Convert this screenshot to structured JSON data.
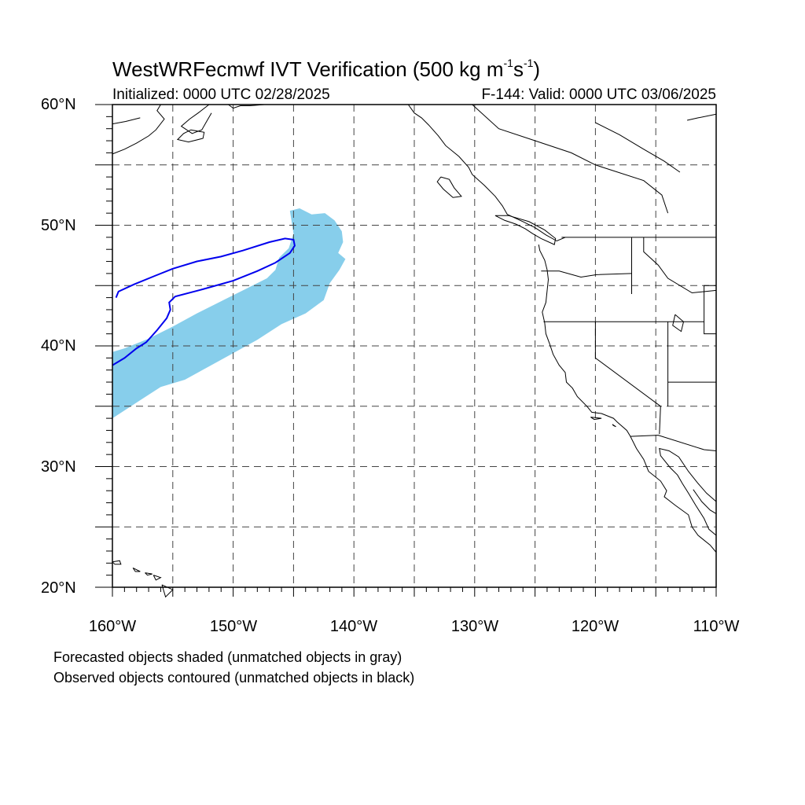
{
  "title_prefix": "WestWRFecmwf IVT Verification (500 kg m",
  "title_exp1": "-1",
  "title_mid": "s",
  "title_exp2": "-1",
  "title_suffix": ")",
  "initialized": "Initialized: 0000 UTC 02/28/2025",
  "valid": "F-144: Valid: 0000 UTC 03/06/2025",
  "lat_labels": [
    "60°N",
    "50°N",
    "40°N",
    "30°N",
    "20°N"
  ],
  "lon_labels": [
    "160°W",
    "150°W",
    "140°W",
    "130°W",
    "120°W",
    "110°W"
  ],
  "legend_note_1": "Forecasted objects shaded (unmatched objects in gray)",
  "legend_note_2": "Observed objects contoured (unmatched objects in black)",
  "map_extent": {
    "lon_min": -160,
    "lon_max": -110,
    "lat_min": 20,
    "lat_max": 60
  },
  "colors": {
    "forecast_object_fill": "#87ceeb",
    "observed_object_contour": "#0000ee",
    "coastline": "#000000",
    "grid": "#000000"
  },
  "forecast_object": {
    "description_type": "shaded",
    "lonlat": [
      [
        -160,
        34
      ],
      [
        -158,
        35.3
      ],
      [
        -156,
        36.6
      ],
      [
        -154,
        37.2
      ],
      [
        -152,
        38.3
      ],
      [
        -150,
        39.4
      ],
      [
        -148,
        40.5
      ],
      [
        -146,
        41.8
      ],
      [
        -144,
        42.7
      ],
      [
        -142.5,
        43.8
      ],
      [
        -142,
        45.2
      ],
      [
        -141.2,
        46.3
      ],
      [
        -140.7,
        47.2
      ],
      [
        -141.3,
        47.7
      ],
      [
        -140.9,
        48.6
      ],
      [
        -141,
        49.5
      ],
      [
        -141.6,
        50.4
      ],
      [
        -142.4,
        51
      ],
      [
        -143.5,
        50.9
      ],
      [
        -144.5,
        51.4
      ],
      [
        -145.3,
        51.2
      ],
      [
        -145,
        49.3
      ],
      [
        -145.4,
        48.1
      ],
      [
        -146.2,
        47.3
      ],
      [
        -146.5,
        46.3
      ],
      [
        -147.2,
        45.6
      ],
      [
        -149,
        44.7
      ],
      [
        -151,
        43.7
      ],
      [
        -153,
        42.7
      ],
      [
        -155,
        41.6
      ],
      [
        -157,
        40.6
      ],
      [
        -159,
        39.8
      ],
      [
        -160,
        39.5
      ]
    ]
  },
  "observed_object": {
    "description_type": "contour",
    "lonlat": [
      [
        -160,
        38.4
      ],
      [
        -159,
        39
      ],
      [
        -158,
        39.8
      ],
      [
        -157.2,
        40.3
      ],
      [
        -156.3,
        41.3
      ],
      [
        -155.5,
        42.3
      ],
      [
        -155.2,
        43
      ],
      [
        -155.3,
        43.6
      ],
      [
        -154.8,
        44.1
      ],
      [
        -152.5,
        44.7
      ],
      [
        -150,
        45.4
      ],
      [
        -148,
        46.2
      ],
      [
        -146.5,
        46.9
      ],
      [
        -145.3,
        47.7
      ],
      [
        -144.9,
        48.3
      ],
      [
        -145,
        48.8
      ],
      [
        -145.7,
        48.9
      ],
      [
        -147,
        48.6
      ],
      [
        -149.2,
        47.9
      ],
      [
        -151,
        47.4
      ],
      [
        -153,
        47
      ],
      [
        -155,
        46.4
      ],
      [
        -156.5,
        45.8
      ],
      [
        -158.2,
        45.1
      ],
      [
        -159.5,
        44.5
      ],
      [
        -159.7,
        44
      ]
    ]
  },
  "us_states_boundaries_shown": true
}
